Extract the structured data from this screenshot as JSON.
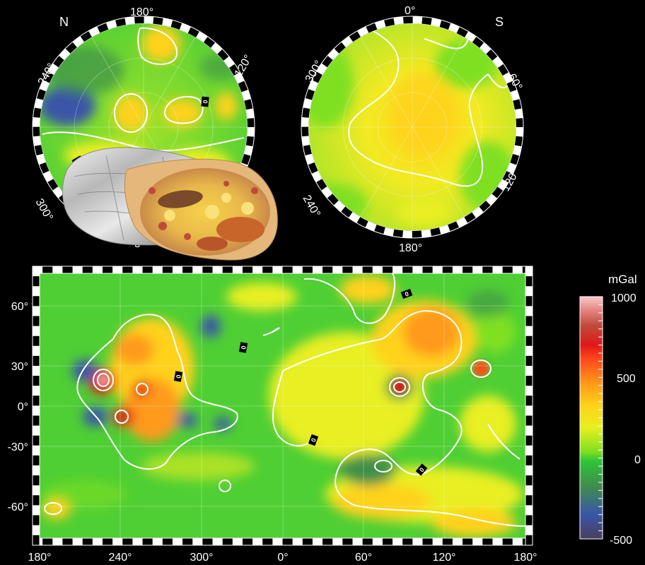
{
  "north_polar_map": {
    "hemisphere_label": "N",
    "longitude_labels": [
      "180°",
      "120°",
      "240°",
      "300°",
      "0"
    ]
  },
  "south_polar_map": {
    "hemisphere_label": "S",
    "longitude_labels": [
      "0°",
      "60°",
      "300°",
      "120°",
      "240°",
      "180°"
    ]
  },
  "cylindrical_map": {
    "latitude_labels": [
      "60°",
      "30°",
      "0°",
      "-30°",
      "-60°"
    ],
    "longitude_labels": [
      "180°",
      "240°",
      "300°",
      "0°",
      "60°",
      "120°",
      "180°"
    ],
    "contour_labels": [
      "0",
      "0",
      "0",
      "0",
      "0",
      "0",
      "0",
      "0"
    ]
  },
  "colorbar": {
    "unit": "mGal",
    "tick_labels": [
      "1000",
      "500",
      "0",
      "-500"
    ]
  },
  "overlay_image": {
    "subject": "breakfast burrito wrapped in foil"
  },
  "colors": {
    "background": "#000000",
    "contour": "#ffffff",
    "scale": [
      "#4a3f5a",
      "#3a55a8",
      "#3f8f4a",
      "#2fc43a",
      "#7fe020",
      "#e8ef20",
      "#ffd21a",
      "#ff9a1a",
      "#ff4a1a",
      "#e01818",
      "#c04a3a",
      "#e88a8a",
      "#ffc8c8"
    ]
  }
}
